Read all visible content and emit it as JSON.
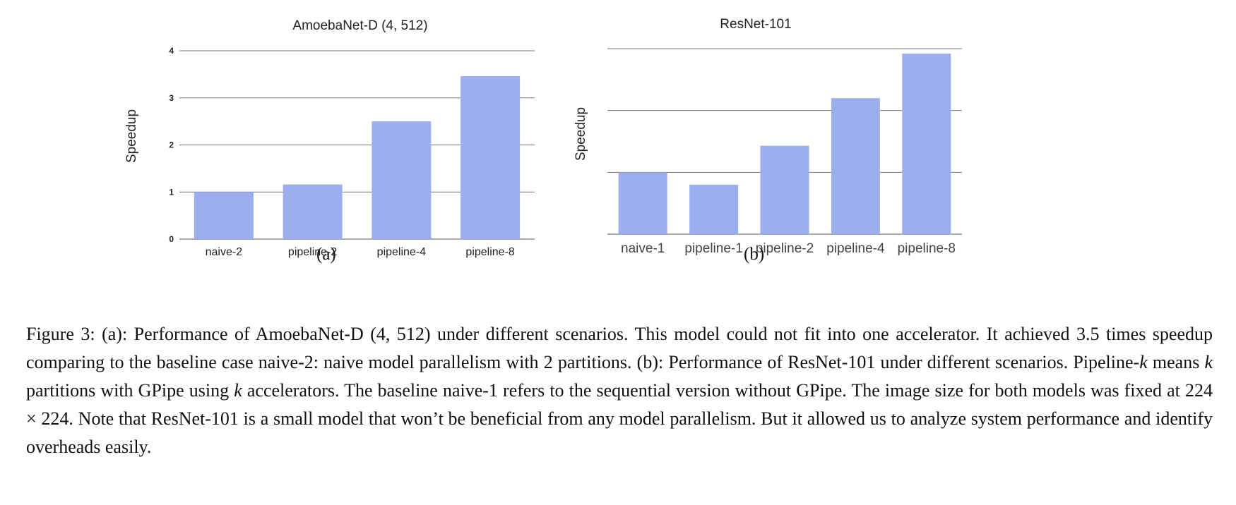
{
  "chart_data": [
    {
      "type": "bar",
      "title": "AmoebaNet-D (4, 512)",
      "xlabel": "",
      "ylabel": "Speedup",
      "categories": [
        "naive-2",
        "pipeline-2",
        "pipeline-4",
        "pipeline-8"
      ],
      "values": [
        1.0,
        1.16,
        2.5,
        3.46
      ],
      "ylim": [
        0,
        4
      ],
      "yticks": [
        0,
        1,
        2,
        3,
        4
      ],
      "grid": true,
      "legend": "none",
      "bar_color": "#9caeed",
      "panel_label": "(a)"
    },
    {
      "type": "bar",
      "title": "ResNet-101",
      "xlabel": "",
      "ylabel": "Speedup",
      "categories": [
        "naive-1",
        "pipeline-1",
        "pipeline-2",
        "pipeline-4",
        "pipeline-8"
      ],
      "values": [
        1.0,
        0.8,
        1.43,
        2.2,
        2.92
      ],
      "ylim": [
        0,
        3
      ],
      "yticks": [
        0,
        1,
        2,
        3
      ],
      "grid": true,
      "legend": "none",
      "bar_color": "#9caeed",
      "panel_label": "(b)"
    }
  ],
  "caption": {
    "label": "Figure 3:",
    "text_1": " (a): Performance of AmoebaNet-D (4, 512) under different scenarios. This model could not fit into one accelerator. It achieved 3.5 times speedup comparing to the baseline case naive-2: naive model parallelism with 2 partitions. (b): Performance of ResNet-101 under different scenarios. Pipeline-",
    "k1": "k",
    "text_2": " means ",
    "k2": "k",
    "text_3": " partitions with GPipe using ",
    "k3": "k",
    "text_4": " accelerators. The baseline naive-1 refers to the sequential version without GPipe. The image size for both models was fixed at 224 × 224. Note that ResNet-101 is a small model that won’t be beneficial from any model parallelism. But it allowed us to analyze system performance and identify overheads easily."
  }
}
